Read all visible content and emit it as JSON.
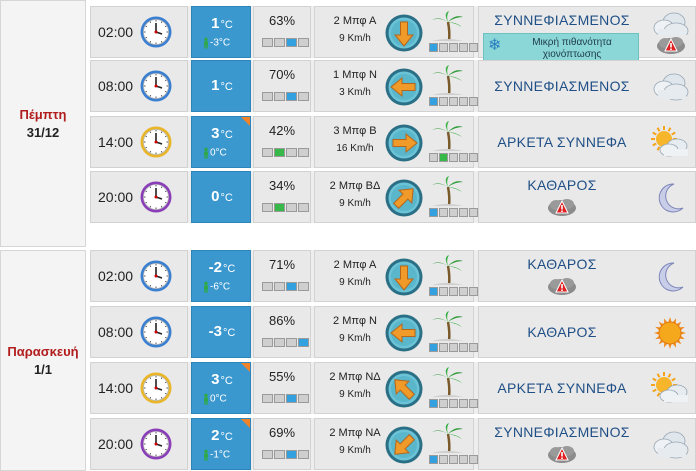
{
  "days": [
    {
      "name": "Πέμπτη",
      "date": "31/12",
      "rows": [
        {
          "time": "02:00",
          "clock": "blue",
          "temp": "1",
          "unit": "°C",
          "feels": "-3°C",
          "corner": false,
          "hum": "63%",
          "hum_level": 3,
          "hum_color": "blue",
          "wind_force": "2 Μπφ Α",
          "wind_speed": "9 Km/h",
          "wind_rot": 180,
          "wind_level": 1,
          "wind_color": "blue",
          "desc": "ΣΥΝΝΕΦΙΑΣΜΕΝΟΣ",
          "icon": "cloud",
          "note": "Μικρή πιθανότητα χιονόπτωσης",
          "alert": true
        },
        {
          "time": "08:00",
          "clock": "blue",
          "temp": "1",
          "unit": "°C",
          "feels": "",
          "corner": false,
          "hum": "70%",
          "hum_level": 3,
          "hum_color": "blue",
          "wind_force": "1 Μπφ Ν",
          "wind_speed": "3 Km/h",
          "wind_rot": 270,
          "wind_level": 1,
          "wind_color": "blue",
          "desc": "ΣΥΝΝΕΦΙΑΣΜΕΝΟΣ",
          "icon": "cloud",
          "note": "",
          "alert": false
        },
        {
          "time": "14:00",
          "clock": "gold",
          "temp": "3",
          "unit": "°C",
          "feels": "0°C",
          "corner": true,
          "hum": "42%",
          "hum_level": 2,
          "hum_color": "green",
          "wind_force": "3 Μπφ Β",
          "wind_speed": "16 Km/h",
          "wind_rot": 90,
          "wind_level": 2,
          "wind_color": "green",
          "desc": "ΑΡΚΕΤΑ ΣΥΝΝΕΦΑ",
          "icon": "suncloud",
          "note": "",
          "alert": false
        },
        {
          "time": "20:00",
          "clock": "purple",
          "temp": "0",
          "unit": "°C",
          "feels": "",
          "corner": false,
          "hum": "34%",
          "hum_level": 2,
          "hum_color": "green",
          "wind_force": "2 Μπφ ΒΔ",
          "wind_speed": "9 Km/h",
          "wind_rot": 45,
          "wind_level": 1,
          "wind_color": "blue",
          "desc": "ΚΑΘΑΡΟΣ",
          "icon": "moon",
          "note": "",
          "alert": true
        }
      ]
    },
    {
      "name": "Παρασκευή",
      "date": "1/1",
      "rows": [
        {
          "time": "02:00",
          "clock": "blue",
          "temp": "-2",
          "unit": "°C",
          "feels": "-6°C",
          "corner": false,
          "hum": "71%",
          "hum_level": 3,
          "hum_color": "blue",
          "wind_force": "2 Μπφ Α",
          "wind_speed": "9 Km/h",
          "wind_rot": 180,
          "wind_level": 1,
          "wind_color": "blue",
          "desc": "ΚΑΘΑΡΟΣ",
          "icon": "moon",
          "note": "",
          "alert": true
        },
        {
          "time": "08:00",
          "clock": "blue",
          "temp": "-3",
          "unit": "°C",
          "feels": "",
          "corner": false,
          "hum": "86%",
          "hum_level": 4,
          "hum_color": "blue",
          "wind_force": "2 Μπφ Ν",
          "wind_speed": "9 Km/h",
          "wind_rot": 270,
          "wind_level": 1,
          "wind_color": "blue",
          "desc": "ΚΑΘΑΡΟΣ",
          "icon": "sun",
          "note": "",
          "alert": false
        },
        {
          "time": "14:00",
          "clock": "gold",
          "temp": "3",
          "unit": "°C",
          "feels": "0°C",
          "corner": true,
          "hum": "55%",
          "hum_level": 3,
          "hum_color": "blue",
          "wind_force": "2 Μπφ ΝΔ",
          "wind_speed": "9 Km/h",
          "wind_rot": 315,
          "wind_level": 1,
          "wind_color": "blue",
          "desc": "ΑΡΚΕΤΑ ΣΥΝΝΕΦΑ",
          "icon": "suncloud",
          "note": "",
          "alert": false
        },
        {
          "time": "20:00",
          "clock": "purple",
          "temp": "2",
          "unit": "°C",
          "feels": "-1°C",
          "corner": true,
          "hum": "69%",
          "hum_level": 3,
          "hum_color": "blue",
          "wind_force": "2 Μπφ ΝΑ",
          "wind_speed": "9 Km/h",
          "wind_rot": 225,
          "wind_level": 1,
          "wind_color": "blue",
          "desc": "ΣΥΝΝΕΦΙΑΣΜΕΝΟΣ",
          "icon": "cloud",
          "note": "",
          "alert": true
        }
      ]
    }
  ]
}
